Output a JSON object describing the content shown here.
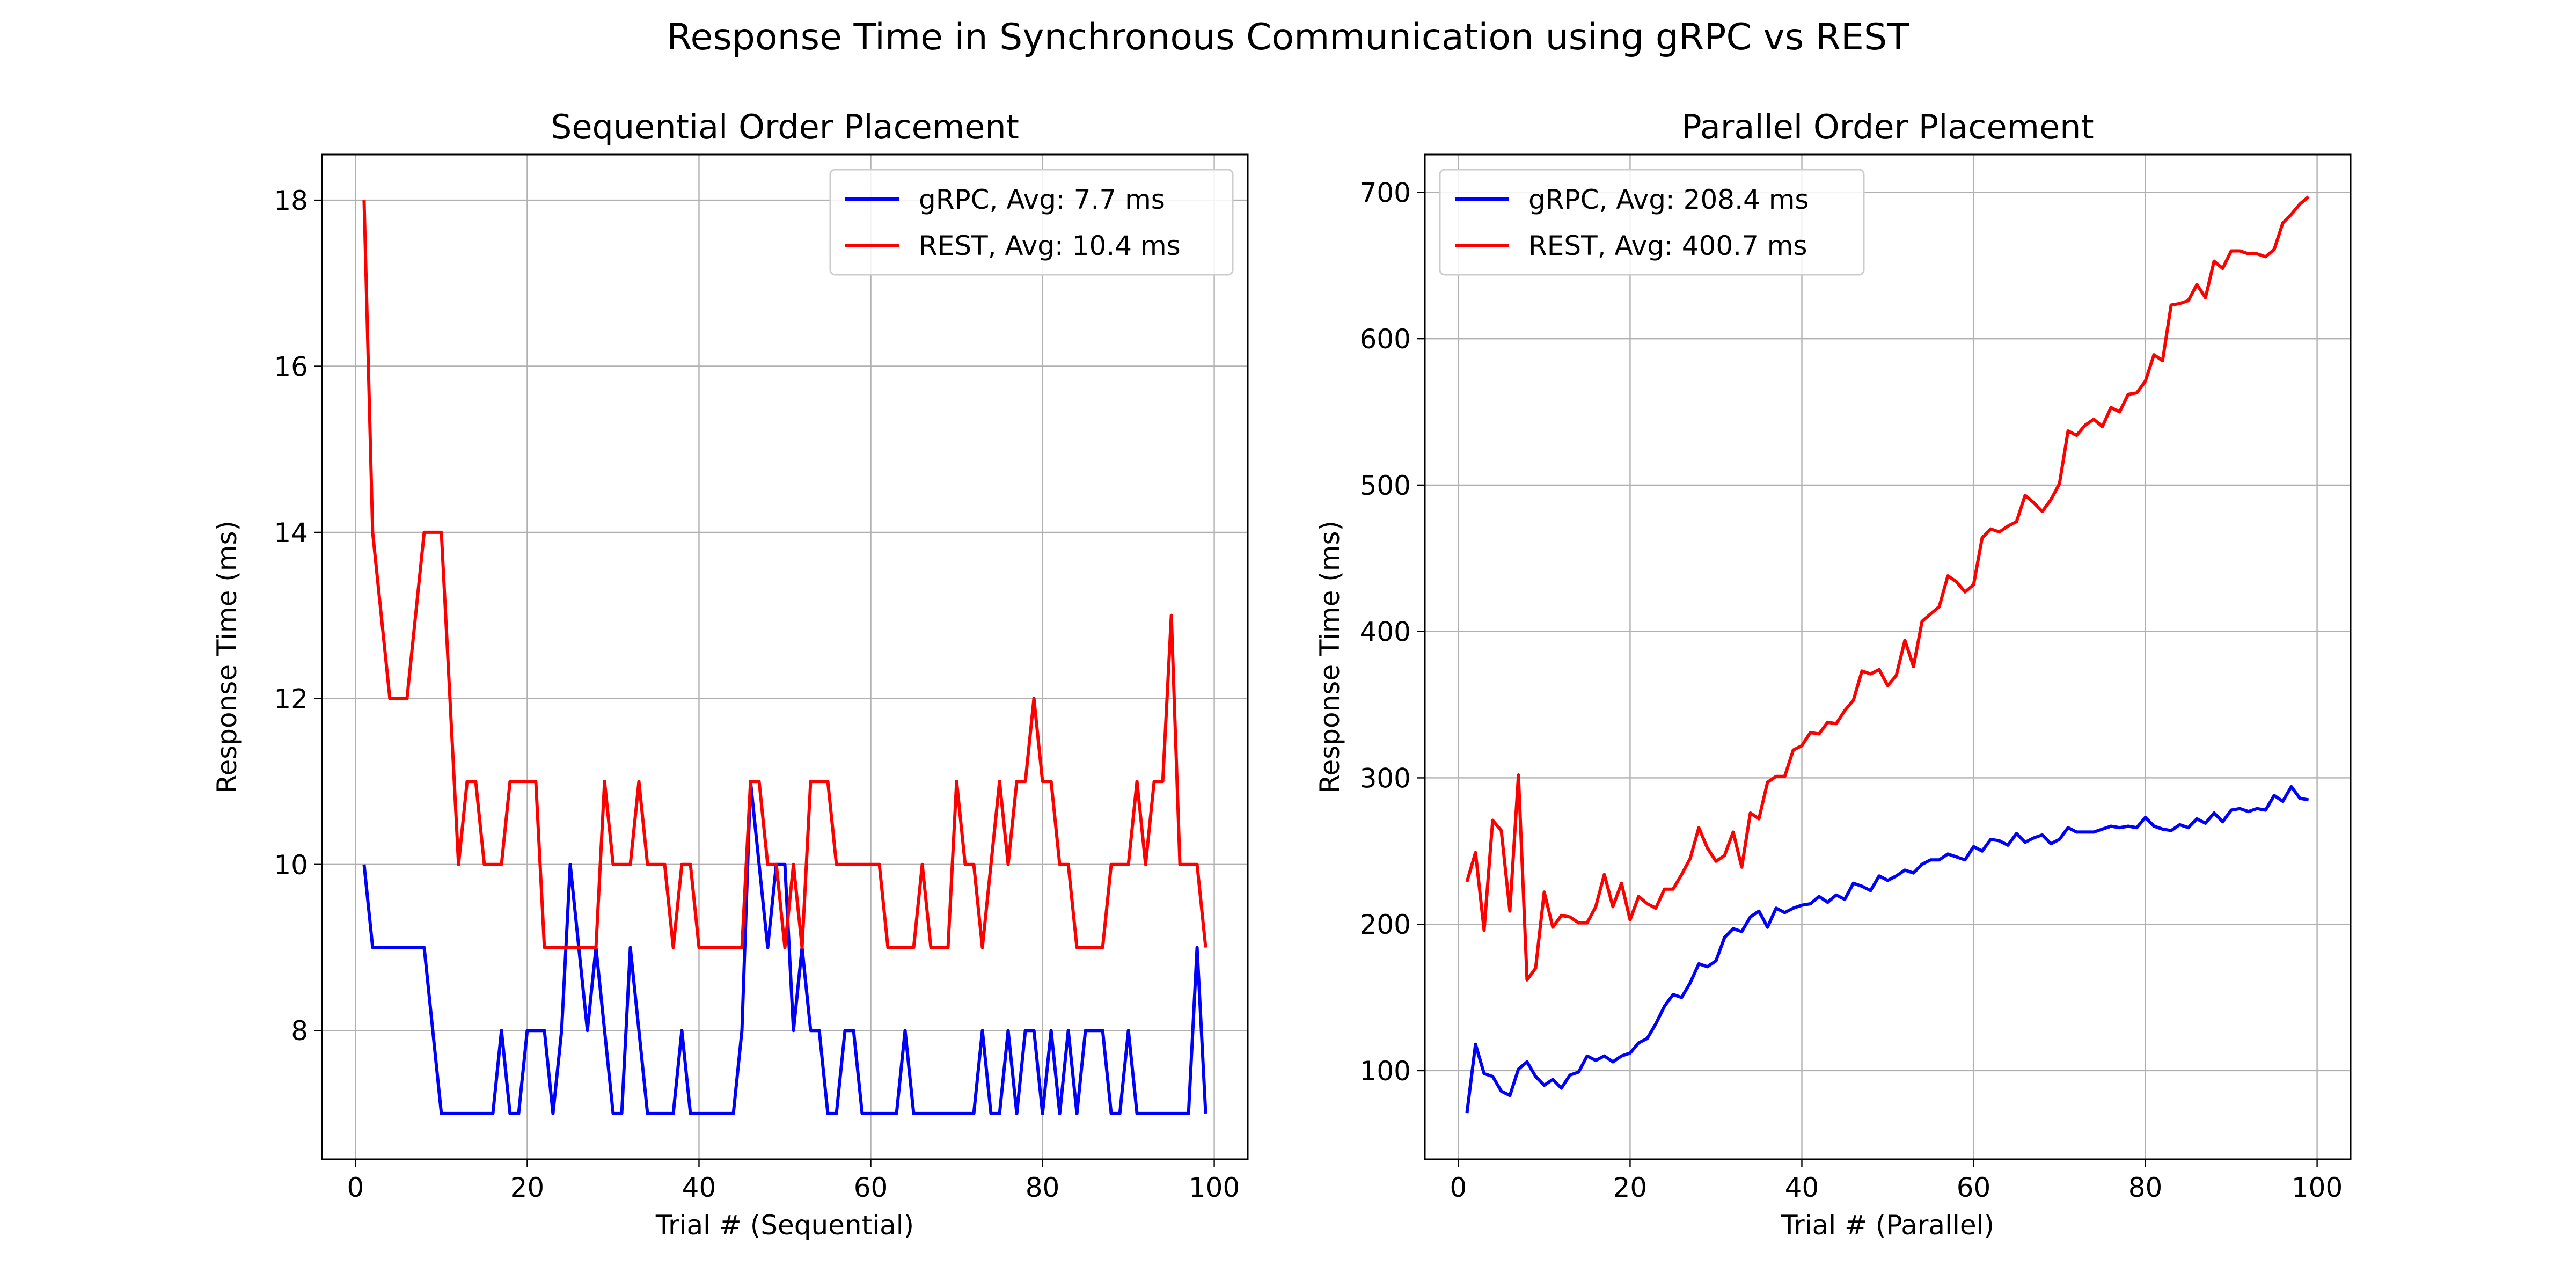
{
  "figure": {
    "title": "Response Time in Synchronous Communication using gRPC vs REST"
  },
  "chart_data": [
    {
      "type": "line",
      "title": "Sequential Order Placement",
      "xlabel": "Trial # (Sequential)",
      "ylabel": "Response Time (ms)",
      "xlim": [
        -3.9,
        103.9
      ],
      "ylim": [
        6.45,
        18.55
      ],
      "xticks": [
        0,
        20,
        40,
        60,
        80,
        100
      ],
      "yticks": [
        8,
        10,
        12,
        14,
        16,
        18
      ],
      "grid": true,
      "legend_position": "upper right",
      "x": [
        1,
        2,
        3,
        4,
        5,
        6,
        7,
        8,
        9,
        10,
        11,
        12,
        13,
        14,
        15,
        16,
        17,
        18,
        19,
        20,
        21,
        22,
        23,
        24,
        25,
        26,
        27,
        28,
        29,
        30,
        31,
        32,
        33,
        34,
        35,
        36,
        37,
        38,
        39,
        40,
        41,
        42,
        43,
        44,
        45,
        46,
        47,
        48,
        49,
        50,
        51,
        52,
        53,
        54,
        55,
        56,
        57,
        58,
        59,
        60,
        61,
        62,
        63,
        64,
        65,
        66,
        67,
        68,
        69,
        70,
        71,
        72,
        73,
        74,
        75,
        76,
        77,
        78,
        79,
        80,
        81,
        82,
        83,
        84,
        85,
        86,
        87,
        88,
        89,
        90,
        91,
        92,
        93,
        94,
        95,
        96,
        97,
        98,
        99
      ],
      "series": [
        {
          "name": "gRPC, Avg: 7.7 ms",
          "color": "#0000ff",
          "values": [
            10,
            9,
            9,
            9,
            9,
            9,
            9,
            9,
            8,
            7,
            7,
            7,
            7,
            7,
            7,
            7,
            8,
            7,
            7,
            8,
            8,
            8,
            7,
            8,
            10,
            9,
            8,
            9,
            8,
            7,
            7,
            9,
            8,
            7,
            7,
            7,
            7,
            8,
            7,
            7,
            7,
            7,
            7,
            7,
            8,
            11,
            10,
            9,
            10,
            10,
            8,
            9,
            8,
            8,
            7,
            7,
            8,
            8,
            7,
            7,
            7,
            7,
            7,
            8,
            7,
            7,
            7,
            7,
            7,
            7,
            7,
            7,
            8,
            7,
            7,
            8,
            7,
            8,
            8,
            7,
            8,
            7,
            8,
            7,
            8,
            8,
            8,
            7,
            7,
            8,
            7,
            7,
            7,
            7,
            7,
            7,
            7,
            9,
            7
          ]
        },
        {
          "name": "REST, Avg: 10.4 ms",
          "color": "#ff0000",
          "values": [
            18,
            14,
            13,
            12,
            12,
            12,
            13,
            14,
            14,
            14,
            12,
            10,
            11,
            11,
            10,
            10,
            10,
            11,
            11,
            11,
            11,
            9,
            9,
            9,
            9,
            9,
            9,
            9,
            11,
            10,
            10,
            10,
            11,
            10,
            10,
            10,
            9,
            10,
            10,
            9,
            9,
            9,
            9,
            9,
            9,
            11,
            11,
            10,
            10,
            9,
            10,
            9,
            11,
            11,
            11,
            10,
            10,
            10,
            10,
            10,
            10,
            9,
            9,
            9,
            9,
            10,
            9,
            9,
            9,
            11,
            10,
            10,
            9,
            10,
            11,
            10,
            11,
            11,
            12,
            11,
            11,
            10,
            10,
            9,
            9,
            9,
            9,
            10,
            10,
            10,
            11,
            10,
            11,
            11,
            13,
            10,
            10,
            10,
            9
          ]
        }
      ]
    },
    {
      "type": "line",
      "title": "Parallel Order Placement",
      "xlabel": "Trial # (Parallel)",
      "ylabel": "Response Time (ms)",
      "xlim": [
        -3.9,
        103.9
      ],
      "ylim": [
        39.5,
        725.8
      ],
      "xticks": [
        0,
        20,
        40,
        60,
        80,
        100
      ],
      "yticks": [
        100,
        200,
        300,
        400,
        500,
        600,
        700
      ],
      "grid": true,
      "legend_position": "upper left",
      "x": [
        1,
        2,
        3,
        4,
        5,
        6,
        7,
        8,
        9,
        10,
        11,
        12,
        13,
        14,
        15,
        16,
        17,
        18,
        19,
        20,
        21,
        22,
        23,
        24,
        25,
        26,
        27,
        28,
        29,
        30,
        31,
        32,
        33,
        34,
        35,
        36,
        37,
        38,
        39,
        40,
        41,
        42,
        43,
        44,
        45,
        46,
        47,
        48,
        49,
        50,
        51,
        52,
        53,
        54,
        55,
        56,
        57,
        58,
        59,
        60,
        61,
        62,
        63,
        64,
        65,
        66,
        67,
        68,
        69,
        70,
        71,
        72,
        73,
        74,
        75,
        76,
        77,
        78,
        79,
        80,
        81,
        82,
        83,
        84,
        85,
        86,
        87,
        88,
        89,
        90,
        91,
        92,
        93,
        94,
        95,
        96,
        97,
        98,
        99
      ],
      "series": [
        {
          "name": "gRPC, Avg: 208.4 ms",
          "color": "#0000ff",
          "values": [
            71,
            118,
            98,
            96,
            86,
            83,
            101,
            106,
            96,
            90,
            94,
            88,
            97,
            99,
            110,
            107,
            110,
            106,
            110,
            112,
            119,
            122,
            132,
            144,
            152,
            150,
            160,
            173,
            171,
            175,
            191,
            197,
            195,
            205,
            209,
            198,
            211,
            208,
            211,
            213,
            214,
            219,
            215,
            220,
            217,
            228,
            226,
            223,
            233,
            230,
            233,
            237,
            235,
            241,
            244,
            244,
            248,
            246,
            244,
            253,
            250,
            258,
            257,
            254,
            262,
            256,
            259,
            261,
            255,
            258,
            266,
            263,
            263,
            263,
            265,
            267,
            266,
            267,
            266,
            273,
            267,
            265,
            264,
            268,
            266,
            272,
            269,
            276,
            270,
            278,
            279,
            277,
            279,
            278,
            288,
            284,
            294,
            286,
            285
          ]
        },
        {
          "name": "REST, Avg: 400.7 ms",
          "color": "#ff0000",
          "values": [
            229,
            249,
            196,
            271,
            264,
            209,
            302,
            162,
            170,
            222,
            198,
            206,
            205,
            201,
            201,
            212,
            234,
            212,
            228,
            203,
            219,
            214,
            211,
            224,
            224,
            234,
            245,
            266,
            252,
            243,
            247,
            263,
            239,
            276,
            272,
            297,
            301,
            301,
            319,
            322,
            331,
            330,
            338,
            337,
            346,
            353,
            373,
            371,
            374,
            363,
            370,
            394,
            376,
            407,
            412,
            417,
            438,
            434,
            427,
            432,
            464,
            470,
            468,
            472,
            475,
            493,
            488,
            482,
            490,
            501,
            537,
            534,
            541,
            545,
            540,
            553,
            550,
            562,
            563,
            571,
            589,
            585,
            623,
            624,
            626,
            637,
            628,
            653,
            648,
            660,
            660,
            658,
            658,
            656,
            661,
            679,
            685,
            692,
            697
          ]
        }
      ]
    }
  ]
}
